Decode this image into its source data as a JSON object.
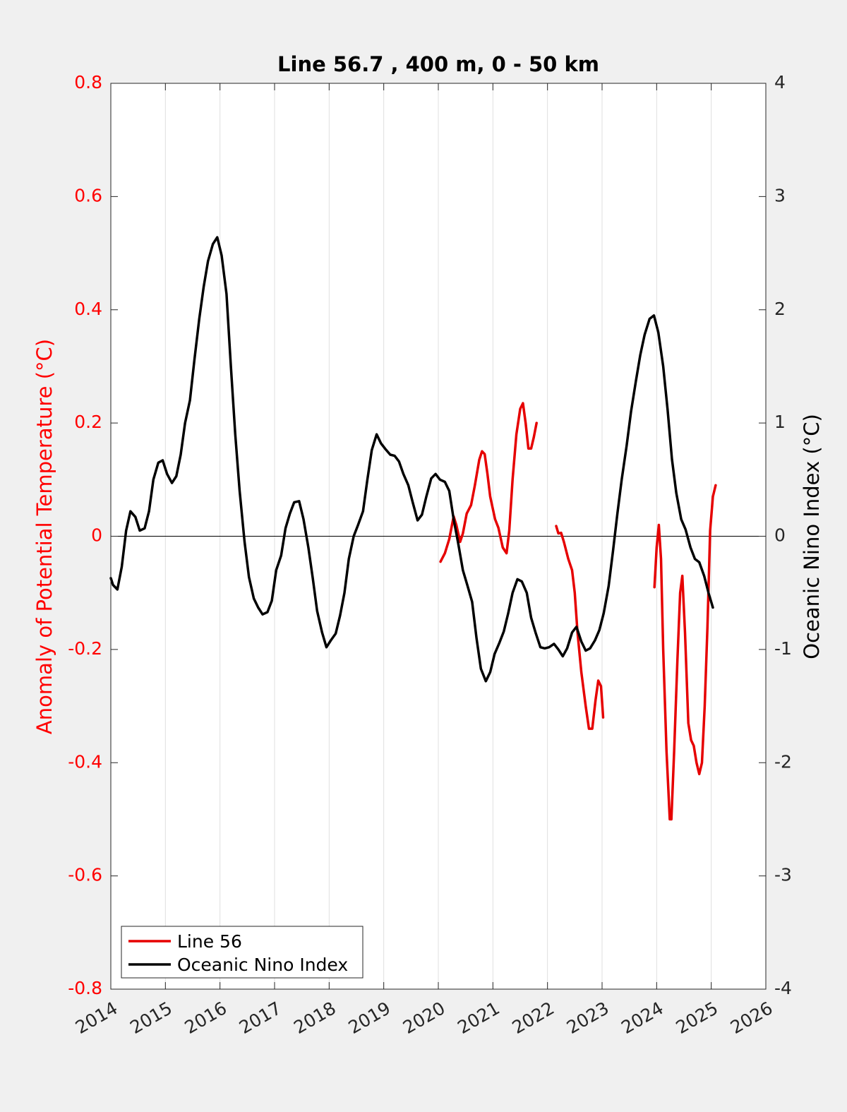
{
  "chart_data": {
    "type": "line",
    "title": "Line 56.7 , 400 m, 0 - 50 km",
    "xlabel": "",
    "ylabel_left": "Anomaly of Potential Temperature (°C)",
    "ylabel_right": "Oceanic Nino Index (°C)",
    "xlim": [
      2014,
      2026
    ],
    "ylim_left": [
      -0.8,
      0.8
    ],
    "ylim_right": [
      -4,
      4
    ],
    "x_ticks": [
      "2014",
      "2015",
      "2016",
      "2017",
      "2018",
      "2019",
      "2020",
      "2021",
      "2022",
      "2023",
      "2024",
      "2025",
      "2026"
    ],
    "y_ticks_left": [
      "-0.8",
      "-0.6",
      "-0.4",
      "-0.2",
      "0",
      "0.2",
      "0.4",
      "0.6",
      "0.8"
    ],
    "y_ticks_right": [
      "-4",
      "-3",
      "-2",
      "-1",
      "0",
      "1",
      "2",
      "3",
      "4"
    ],
    "grid": "vertical",
    "legend_position": "bottom-left",
    "colors": {
      "left_axis": "#ff0000",
      "line56": "#e60000",
      "oni": "#000000",
      "plot_bg": "#ffffff",
      "figure_bg": "#f0f0f0"
    },
    "series": [
      {
        "name": "Line 56",
        "axis": "left",
        "color": "#e60000",
        "segments": [
          [
            [
              2020.04,
              -0.045
            ],
            [
              2020.12,
              -0.03
            ],
            [
              2020.2,
              -0.005
            ],
            [
              2020.28,
              0.035
            ],
            [
              2020.33,
              0.02
            ],
            [
              2020.4,
              -0.01
            ],
            [
              2020.45,
              0.005
            ],
            [
              2020.52,
              0.04
            ],
            [
              2020.6,
              0.055
            ],
            [
              2020.67,
              0.09
            ],
            [
              2020.75,
              0.135
            ],
            [
              2020.8,
              0.15
            ],
            [
              2020.85,
              0.145
            ],
            [
              2020.9,
              0.11
            ],
            [
              2020.95,
              0.07
            ],
            [
              2021.04,
              0.03
            ],
            [
              2021.1,
              0.015
            ],
            [
              2021.18,
              -0.02
            ],
            [
              2021.25,
              -0.03
            ],
            [
              2021.3,
              0.01
            ],
            [
              2021.36,
              0.1
            ],
            [
              2021.43,
              0.18
            ],
            [
              2021.5,
              0.225
            ],
            [
              2021.55,
              0.235
            ],
            [
              2021.6,
              0.2
            ],
            [
              2021.65,
              0.155
            ],
            [
              2021.7,
              0.155
            ],
            [
              2021.75,
              0.175
            ],
            [
              2021.8,
              0.2
            ]
          ],
          [
            [
              2022.16,
              0.018
            ],
            [
              2022.2,
              0.005
            ],
            [
              2022.25,
              0.006
            ],
            [
              2022.3,
              -0.01
            ],
            [
              2022.38,
              -0.04
            ],
            [
              2022.45,
              -0.06
            ],
            [
              2022.5,
              -0.1
            ],
            [
              2022.55,
              -0.17
            ],
            [
              2022.62,
              -0.24
            ],
            [
              2022.7,
              -0.3
            ],
            [
              2022.76,
              -0.34
            ],
            [
              2022.82,
              -0.34
            ],
            [
              2022.88,
              -0.29
            ],
            [
              2022.93,
              -0.255
            ],
            [
              2022.98,
              -0.265
            ],
            [
              2023.02,
              -0.32
            ]
          ],
          [
            [
              2023.96,
              -0.09
            ],
            [
              2024.0,
              -0.02
            ],
            [
              2024.04,
              0.02
            ],
            [
              2024.08,
              -0.04
            ],
            [
              2024.12,
              -0.2
            ],
            [
              2024.18,
              -0.38
            ],
            [
              2024.24,
              -0.5
            ],
            [
              2024.27,
              -0.5
            ],
            [
              2024.32,
              -0.38
            ],
            [
              2024.38,
              -0.22
            ],
            [
              2024.43,
              -0.1
            ],
            [
              2024.47,
              -0.07
            ],
            [
              2024.52,
              -0.17
            ],
            [
              2024.58,
              -0.33
            ],
            [
              2024.63,
              -0.36
            ],
            [
              2024.68,
              -0.37
            ],
            [
              2024.73,
              -0.4
            ],
            [
              2024.78,
              -0.42
            ],
            [
              2024.83,
              -0.4
            ],
            [
              2024.88,
              -0.3
            ],
            [
              2024.93,
              -0.16
            ],
            [
              2024.98,
              0.01
            ],
            [
              2025.03,
              0.07
            ],
            [
              2025.08,
              0.09
            ]
          ]
        ]
      },
      {
        "name": "Oceanic Nino Index",
        "axis": "right",
        "color": "#000000",
        "segments": [
          [
            [
              2014.0,
              -0.37
            ],
            [
              2014.04,
              -0.43
            ],
            [
              2014.12,
              -0.47
            ],
            [
              2014.2,
              -0.27
            ],
            [
              2014.28,
              0.05
            ],
            [
              2014.36,
              0.22
            ],
            [
              2014.45,
              0.17
            ],
            [
              2014.53,
              0.05
            ],
            [
              2014.62,
              0.07
            ],
            [
              2014.7,
              0.22
            ],
            [
              2014.78,
              0.5
            ],
            [
              2014.87,
              0.65
            ],
            [
              2014.95,
              0.67
            ],
            [
              2015.03,
              0.55
            ],
            [
              2015.12,
              0.47
            ],
            [
              2015.2,
              0.53
            ],
            [
              2015.28,
              0.72
            ],
            [
              2015.36,
              1.0
            ],
            [
              2015.45,
              1.2
            ],
            [
              2015.53,
              1.55
            ],
            [
              2015.62,
              1.92
            ],
            [
              2015.7,
              2.2
            ],
            [
              2015.78,
              2.43
            ],
            [
              2015.87,
              2.58
            ],
            [
              2015.95,
              2.64
            ],
            [
              2016.03,
              2.48
            ],
            [
              2016.12,
              2.14
            ],
            [
              2016.2,
              1.5
            ],
            [
              2016.28,
              0.9
            ],
            [
              2016.36,
              0.4
            ],
            [
              2016.45,
              -0.05
            ],
            [
              2016.53,
              -0.36
            ],
            [
              2016.62,
              -0.55
            ],
            [
              2016.7,
              -0.63
            ],
            [
              2016.78,
              -0.69
            ],
            [
              2016.87,
              -0.67
            ],
            [
              2016.95,
              -0.57
            ],
            [
              2017.03,
              -0.3
            ],
            [
              2017.12,
              -0.17
            ],
            [
              2017.2,
              0.07
            ],
            [
              2017.28,
              0.2
            ],
            [
              2017.36,
              0.3
            ],
            [
              2017.45,
              0.31
            ],
            [
              2017.53,
              0.15
            ],
            [
              2017.62,
              -0.1
            ],
            [
              2017.7,
              -0.37
            ],
            [
              2017.78,
              -0.66
            ],
            [
              2017.87,
              -0.85
            ],
            [
              2017.95,
              -0.98
            ],
            [
              2018.03,
              -0.92
            ],
            [
              2018.12,
              -0.86
            ],
            [
              2018.2,
              -0.7
            ],
            [
              2018.28,
              -0.5
            ],
            [
              2018.36,
              -0.2
            ],
            [
              2018.45,
              0.0
            ],
            [
              2018.53,
              0.1
            ],
            [
              2018.62,
              0.22
            ],
            [
              2018.7,
              0.5
            ],
            [
              2018.78,
              0.76
            ],
            [
              2018.87,
              0.9
            ],
            [
              2018.95,
              0.82
            ],
            [
              2019.03,
              0.77
            ],
            [
              2019.12,
              0.72
            ],
            [
              2019.2,
              0.71
            ],
            [
              2019.28,
              0.66
            ],
            [
              2019.36,
              0.55
            ],
            [
              2019.45,
              0.45
            ],
            [
              2019.53,
              0.3
            ],
            [
              2019.62,
              0.14
            ],
            [
              2019.7,
              0.19
            ],
            [
              2019.78,
              0.35
            ],
            [
              2019.87,
              0.51
            ],
            [
              2019.95,
              0.55
            ],
            [
              2020.03,
              0.5
            ],
            [
              2020.12,
              0.48
            ],
            [
              2020.2,
              0.4
            ],
            [
              2020.28,
              0.15
            ],
            [
              2020.36,
              -0.05
            ],
            [
              2020.45,
              -0.3
            ],
            [
              2020.53,
              -0.43
            ],
            [
              2020.62,
              -0.58
            ],
            [
              2020.7,
              -0.9
            ],
            [
              2020.78,
              -1.17
            ],
            [
              2020.87,
              -1.28
            ],
            [
              2020.95,
              -1.2
            ],
            [
              2021.03,
              -1.04
            ],
            [
              2021.12,
              -0.94
            ],
            [
              2021.2,
              -0.84
            ],
            [
              2021.28,
              -0.68
            ],
            [
              2021.36,
              -0.5
            ],
            [
              2021.45,
              -0.38
            ],
            [
              2021.53,
              -0.4
            ],
            [
              2021.62,
              -0.5
            ],
            [
              2021.7,
              -0.72
            ],
            [
              2021.78,
              -0.85
            ],
            [
              2021.87,
              -0.98
            ],
            [
              2021.95,
              -0.99
            ],
            [
              2022.03,
              -0.98
            ],
            [
              2022.12,
              -0.95
            ],
            [
              2022.2,
              -1.0
            ],
            [
              2022.28,
              -1.06
            ],
            [
              2022.36,
              -0.99
            ],
            [
              2022.45,
              -0.85
            ],
            [
              2022.53,
              -0.8
            ],
            [
              2022.62,
              -0.93
            ],
            [
              2022.7,
              -1.01
            ],
            [
              2022.78,
              -0.99
            ],
            [
              2022.87,
              -0.92
            ],
            [
              2022.95,
              -0.83
            ],
            [
              2023.03,
              -0.68
            ],
            [
              2023.12,
              -0.44
            ],
            [
              2023.2,
              -0.13
            ],
            [
              2023.28,
              0.2
            ],
            [
              2023.36,
              0.5
            ],
            [
              2023.45,
              0.8
            ],
            [
              2023.53,
              1.1
            ],
            [
              2023.62,
              1.37
            ],
            [
              2023.7,
              1.6
            ],
            [
              2023.78,
              1.78
            ],
            [
              2023.87,
              1.92
            ],
            [
              2023.95,
              1.95
            ],
            [
              2024.03,
              1.8
            ],
            [
              2024.12,
              1.5
            ],
            [
              2024.2,
              1.12
            ],
            [
              2024.28,
              0.68
            ],
            [
              2024.36,
              0.38
            ],
            [
              2024.45,
              0.15
            ],
            [
              2024.53,
              0.06
            ],
            [
              2024.62,
              -0.1
            ],
            [
              2024.7,
              -0.2
            ],
            [
              2024.78,
              -0.23
            ],
            [
              2024.87,
              -0.35
            ],
            [
              2024.95,
              -0.5
            ],
            [
              2025.03,
              -0.63
            ]
          ]
        ]
      }
    ]
  }
}
